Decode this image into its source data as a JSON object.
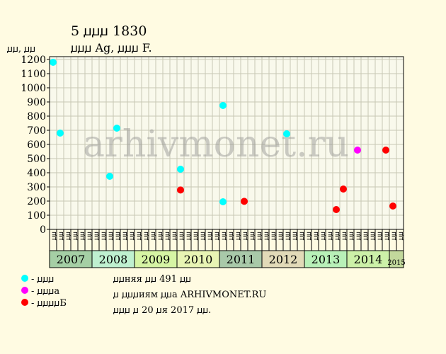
{
  "chart_data": {
    "type": "scatter",
    "title": "5 ꙡꙡꙡ 1830",
    "subtitle": "ꙡꙡꙡ Ag, ꙡꙡꙡ F.",
    "ylabel": "ꙡꙡ, ꙡꙡ",
    "watermark": "arhivmonet.ru",
    "ylim": [
      0,
      1200
    ],
    "y_ticks": [
      0,
      100,
      200,
      300,
      400,
      500,
      600,
      700,
      800,
      900,
      1000,
      1100,
      1200
    ],
    "periods": [
      "ꙡꙡ",
      "ꙡꙡ",
      "ꙡꙡ",
      "ꙡꙡ",
      "ꙡꙡ",
      "ꙡꙡ",
      "ꙡꙡ",
      "ꙡꙡ",
      "ꙡꙡ",
      "ꙡꙡ",
      "ꙡꙡ",
      "ꙡꙡ",
      "ꙡꙡ",
      "ꙡꙡ",
      "ꙡꙡ",
      "ꙡꙡ",
      "ꙡꙡ",
      "ꙡꙡ",
      "ꙡꙡ",
      "ꙡꙡ",
      "ꙡꙡ",
      "ꙡꙡ",
      "ꙡꙡ",
      "ꙡꙡ",
      "ꙡꙡ",
      "ꙡꙡ",
      "ꙡꙡ",
      "ꙡꙡ",
      "ꙡꙡ",
      "ꙡꙡ",
      "ꙡꙡ",
      "ꙡꙡ",
      "ꙡꙡ",
      "ꙡꙡ",
      "ꙡꙡ",
      "ꙡꙡ",
      "ꙡꙡ",
      "ꙡꙡ",
      "ꙡꙡ",
      "ꙡꙡ",
      "ꙡꙡ",
      "ꙡꙡ",
      "ꙡꙡ",
      "ꙡꙡ",
      "ꙡꙡ",
      "ꙡꙡ",
      "ꙡꙡ",
      "ꙡꙡ",
      "ꙡꙡ",
      "ꙡꙡ"
    ],
    "years": [
      {
        "label": "2007",
        "span": 6,
        "color": "#a5cfa5"
      },
      {
        "label": "2008",
        "span": 6,
        "color": "#bff0d0"
      },
      {
        "label": "2009",
        "span": 6,
        "color": "#d6f4a4"
      },
      {
        "label": "2010",
        "span": 6,
        "color": "#e8f4b4"
      },
      {
        "label": "2011",
        "span": 6,
        "color": "#a9c9a9"
      },
      {
        "label": "2012",
        "span": 6,
        "color": "#e2dab8"
      },
      {
        "label": "2013",
        "span": 6,
        "color": "#b8f0b8"
      },
      {
        "label": "2014",
        "span": 6,
        "color": "#ccf0a8"
      },
      {
        "label": "2015",
        "span": 2,
        "color": "#c2d89c",
        "small": true
      }
    ],
    "series": [
      {
        "name": "ꙡꙡꙡ",
        "color": "#00ffff",
        "points": [
          [
            0,
            1180
          ],
          [
            1,
            680
          ],
          [
            8,
            375
          ],
          [
            9,
            715
          ],
          [
            18,
            425
          ],
          [
            24,
            875
          ],
          [
            24,
            195
          ],
          [
            33,
            675
          ]
        ]
      },
      {
        "name": "ꙡꙡꙡa",
        "color": "#ff00ff",
        "points": [
          [
            43,
            560
          ]
        ]
      },
      {
        "name": "ꙡꙡꙡꙡБ",
        "color": "#ff0000",
        "points": [
          [
            18,
            278
          ],
          [
            27,
            198
          ],
          [
            40,
            140
          ],
          [
            41,
            285
          ],
          [
            47,
            560
          ],
          [
            48,
            165
          ]
        ]
      }
    ]
  },
  "legend_items": [
    {
      "color": "#00ffff",
      "label": "- ꙡꙡꙡ"
    },
    {
      "color": "#ff00ff",
      "label": "- ꙡꙡꙡa"
    },
    {
      "color": "#ff0000",
      "label": "- ꙡꙡꙡꙡБ"
    }
  ],
  "notes": {
    "line1": "ꙡꙡняя ꙡꙡ 491 ꙡꙡ",
    "line2": "ꙡ ꙡꙡꙡиям ꙡꙡa ARHIVMONET.RU",
    "line3": "ꙡꙡꙡ ꙡ 20 ꙡя 2017 ꙡꙡ."
  }
}
